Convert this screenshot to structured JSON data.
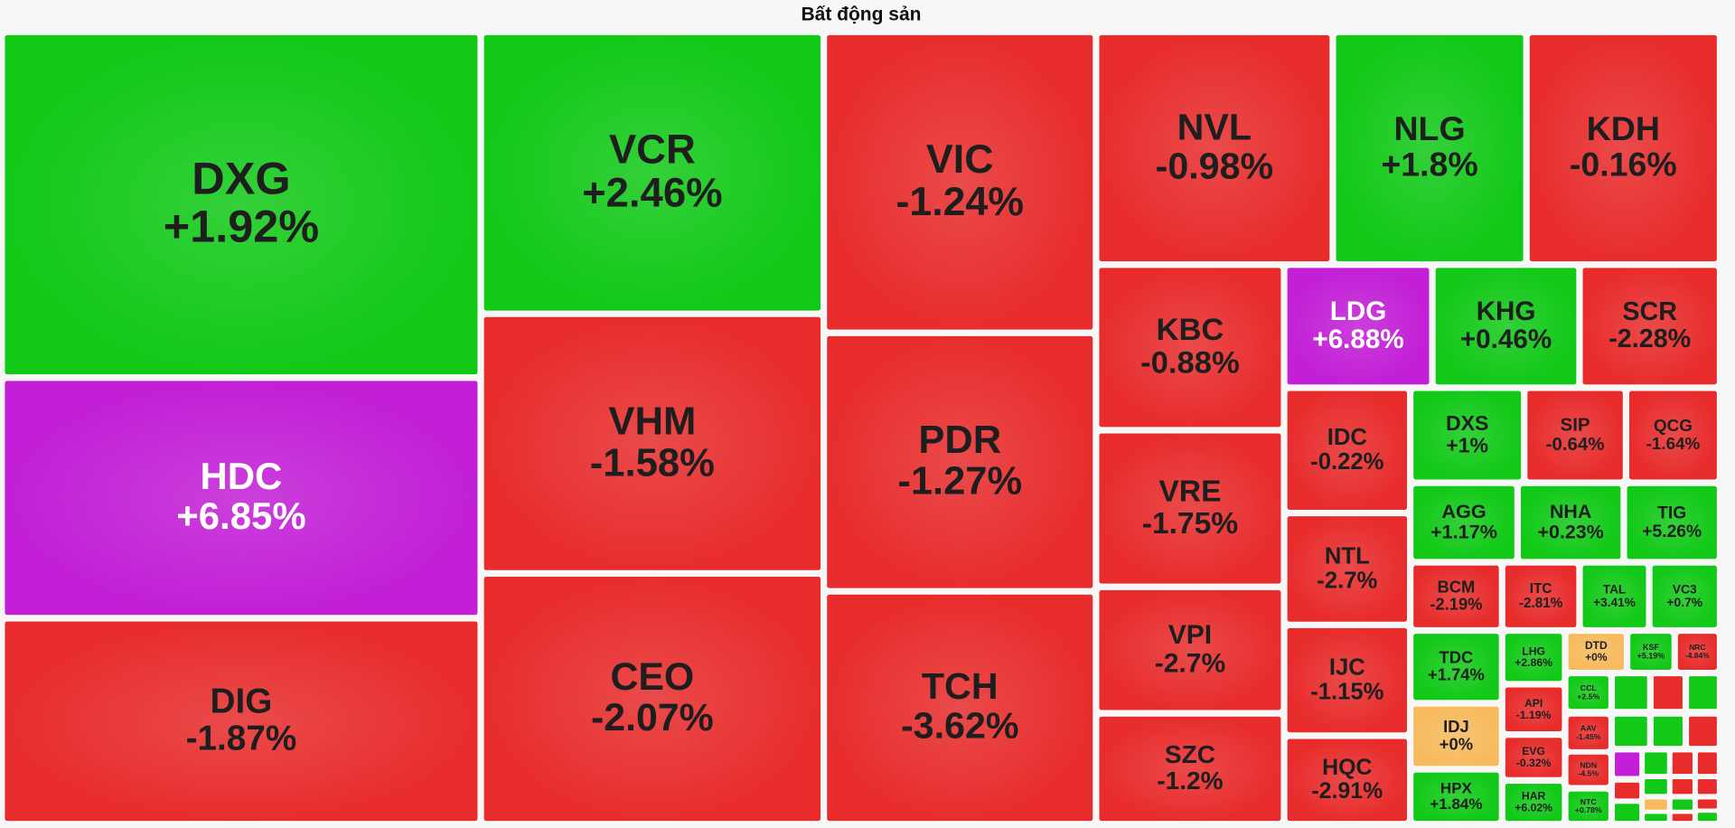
{
  "chart_data": {
    "type": "treemap",
    "title": "Bất động sản",
    "categories": [
      "DXG",
      "HDC",
      "DIG",
      "VCR",
      "VHM",
      "CEO",
      "VIC",
      "PDR",
      "TCH",
      "NVL",
      "NLG",
      "KDH",
      "KBC",
      "VRE",
      "VPI",
      "SZC",
      "LDG",
      "KHG",
      "SCR",
      "IDC",
      "NTL",
      "IJC",
      "HQC",
      "DXS",
      "SIP",
      "QCG",
      "AGG",
      "NHA",
      "TIG",
      "BCM",
      "ITC",
      "TAL",
      "VC3",
      "TDC",
      "IDJ",
      "HPX",
      "LHG",
      "API",
      "EVG",
      "HAR",
      "DTD",
      "KSF",
      "NRC",
      "CCL",
      "AAV",
      "NDN",
      "NTC"
    ],
    "values": [
      1.92,
      6.85,
      -1.87,
      2.46,
      -1.58,
      -2.07,
      -1.24,
      -1.27,
      -3.62,
      -0.98,
      1.8,
      -0.16,
      -0.88,
      -1.75,
      -2.7,
      -1.2,
      6.88,
      0.46,
      -2.28,
      -0.22,
      -2.7,
      -1.15,
      -2.91,
      1,
      -0.64,
      -1.64,
      1.17,
      0.23,
      5.26,
      -2.19,
      -2.81,
      3.41,
      0.7,
      1.74,
      0,
      1.84,
      2.86,
      -1.19,
      -0.32,
      6.02,
      0,
      5.19,
      -4.84,
      2.5,
      -1.45,
      -4.5,
      0.78
    ],
    "value_labels": [
      "+1.92%",
      "+6.85%",
      "-1.87%",
      "+2.46%",
      "-1.58%",
      "-2.07%",
      "-1.24%",
      "-1.27%",
      "-3.62%",
      "-0.98%",
      "+1.8%",
      "-0.16%",
      "-0.88%",
      "-1.75%",
      "-2.7%",
      "-1.2%",
      "+6.88%",
      "+0.46%",
      "-2.28%",
      "-0.22%",
      "-2.7%",
      "-1.15%",
      "-2.91%",
      "+1%",
      "-0.64%",
      "-1.64%",
      "+1.17%",
      "+0.23%",
      "+5.26%",
      "-2.19%",
      "-2.81%",
      "+3.41%",
      "+0.7%",
      "+1.74%",
      "+0%",
      "+1.84%",
      "+2.86%",
      "-1.19%",
      "-0.32%",
      "+6.02%",
      "+0%",
      "+5.19%",
      "-4.84%",
      "+2.5%",
      "-1.45%",
      "-4.5%",
      "+0.78%"
    ],
    "colors": [
      "#12c918",
      "#c21fd6",
      "#e82c2c",
      "#12c918",
      "#e82c2c",
      "#e82c2c",
      "#e82c2c",
      "#e82c2c",
      "#e82c2c",
      "#e82c2c",
      "#12c918",
      "#e82c2c",
      "#e82c2c",
      "#e82c2c",
      "#e82c2c",
      "#e82c2c",
      "#c21fd6",
      "#12c918",
      "#e82c2c",
      "#e82c2c",
      "#e82c2c",
      "#e82c2c",
      "#e82c2c",
      "#12c918",
      "#e82c2c",
      "#e82c2c",
      "#12c918",
      "#12c918",
      "#12c918",
      "#e82c2c",
      "#e82c2c",
      "#12c918",
      "#12c918",
      "#12c918",
      "#f7bb5e",
      "#12c918",
      "#12c918",
      "#e82c2c",
      "#e82c2c",
      "#12c918",
      "#f7bb5e",
      "#12c918",
      "#e82c2c",
      "#12c918",
      "#e82c2c",
      "#e82c2c",
      "#12c918"
    ]
  }
}
